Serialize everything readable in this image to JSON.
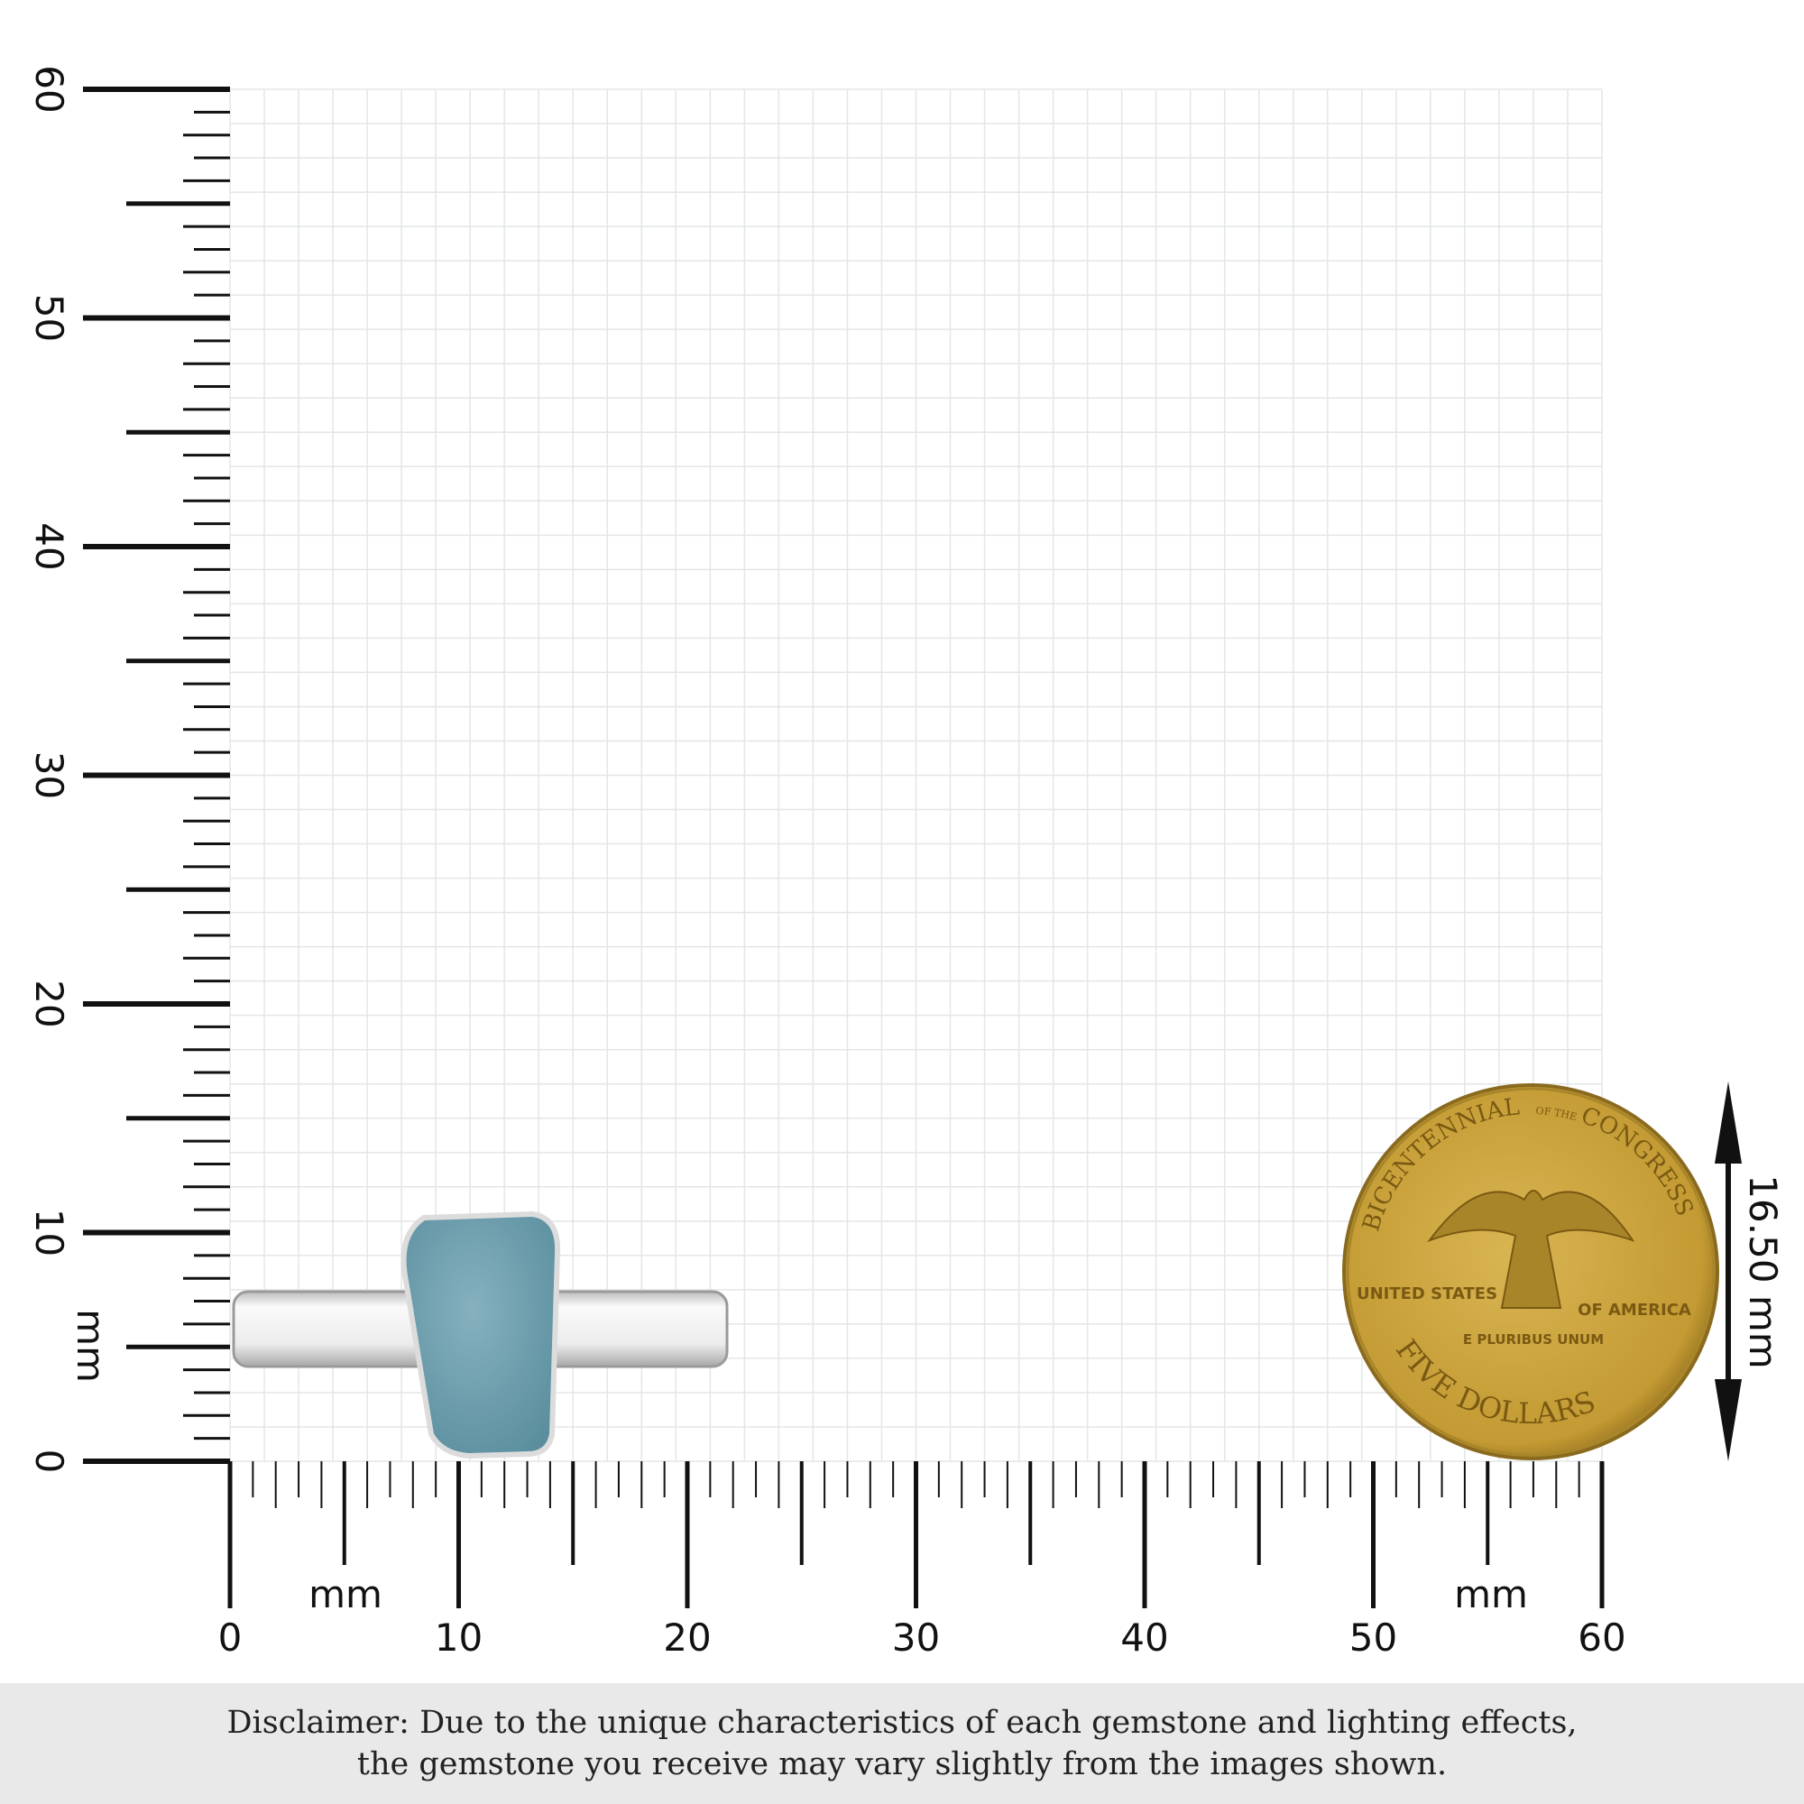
{
  "units": "mm",
  "x_axis": {
    "ticks": [
      "0",
      "10",
      "20",
      "30",
      "40",
      "50",
      "60"
    ],
    "unit_labels": [
      "mm",
      "mm"
    ]
  },
  "y_axis": {
    "ticks": [
      "0",
      "10",
      "20",
      "30",
      "40",
      "50",
      "60"
    ],
    "unit_label": "mm"
  },
  "coin": {
    "diameter_label": "16.50 mm",
    "inscriptions": [
      "BICENTENNIAL",
      "OF THE",
      "CONGRESS",
      "UNITED STATES",
      "OF AMERICA",
      "E PLURIBUS UNUM",
      "FIVE DOLLARS"
    ]
  },
  "disclaimer": {
    "line1": "Disclaimer: Due to the unique characteristics of each gemstone and lighting effects,",
    "line2": "the gemstone you receive may vary slightly from the images shown."
  },
  "colors": {
    "grid": "#e3e6e8",
    "gem": "#6e9fae",
    "coin": "#c9a23a",
    "band": "#f0f0f0",
    "disclaimer_bg": "#e9e9e9"
  }
}
